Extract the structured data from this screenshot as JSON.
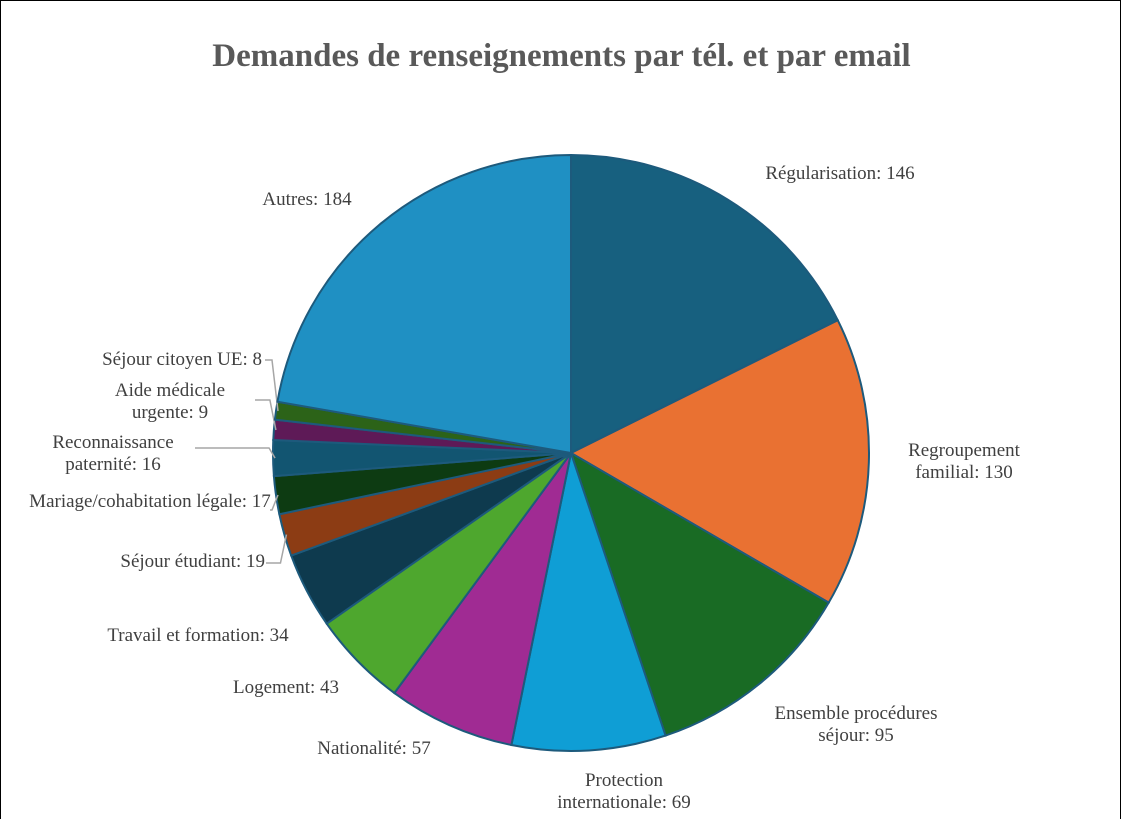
{
  "chart_data": {
    "type": "pie",
    "title": "Demandes de renseignements par tél. et par email",
    "categories": [
      "Régularisation",
      "Regroupement familial",
      "Ensemble procédures séjour",
      "Protection internationale",
      "Nationalité",
      "Logement",
      "Travail et formation",
      "Séjour étudiant",
      "Mariage/cohabitation légale",
      "Reconnaissance paternité",
      "Aide médicale urgente",
      "Séjour citoyen UE",
      "Autres"
    ],
    "values": [
      146,
      130,
      95,
      69,
      57,
      43,
      34,
      19,
      17,
      16,
      9,
      8,
      184
    ],
    "value_labels": [
      "Régularisation: 146",
      "Regroupement familial: 130",
      "Ensemble procédures séjour: 95",
      "Protection internationale: 69",
      "Nationalité: 57",
      "Logement: 43",
      "Travail et formation: 34",
      "Séjour étudiant: 19",
      "Mariage/cohabitation légale: 17",
      "Reconnaissance paternité: 16",
      "Aide médicale urgente: 9",
      "Séjour citoyen UE: 8",
      "Autres: 184"
    ],
    "colors": [
      "#17607f",
      "#e97132",
      "#196b24",
      "#0f9ed5",
      "#a02b93",
      "#4ea72e",
      "#0e3a4e",
      "#8c3c14",
      "#0d3b12",
      "#125571",
      "#5e1a57",
      "#2c6318",
      "#1f90c3"
    ]
  }
}
